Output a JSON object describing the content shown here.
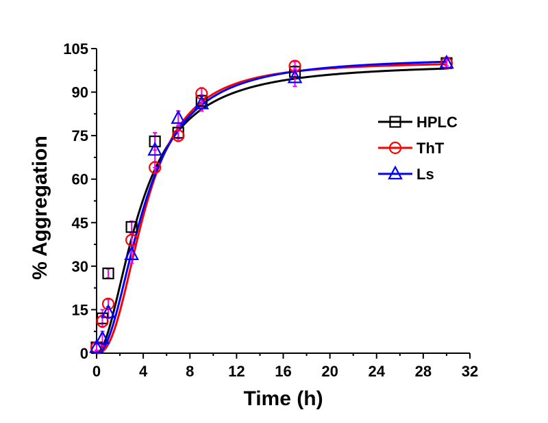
{
  "chart_data": {
    "type": "line",
    "title": "",
    "xlabel": "Time (h)",
    "ylabel": "% Aggregation",
    "xlim": [
      0,
      32
    ],
    "ylim": [
      0,
      105
    ],
    "xticks": [
      0,
      4,
      8,
      12,
      16,
      20,
      24,
      28,
      32
    ],
    "yticks": [
      0,
      15,
      30,
      45,
      60,
      75,
      90,
      105
    ],
    "xtick_labels": [
      "0",
      "4",
      "8",
      "12",
      "16",
      "20",
      "24",
      "28",
      "32"
    ],
    "ytick_labels": [
      "0",
      "15",
      "30",
      "45",
      "60",
      "75",
      "90",
      "105"
    ],
    "grid": false,
    "legend_position": "right",
    "error_bar_color": "#ff00ff",
    "series": [
      {
        "name": "HPLC",
        "color": "#000000",
        "marker": "square",
        "x": [
          0,
          0.5,
          1,
          3,
          5,
          7,
          9,
          17,
          30
        ],
        "y": [
          2,
          12,
          27.5,
          43.5,
          73,
          76,
          87,
          97,
          100
        ],
        "err": [
          1,
          3,
          1.5,
          2,
          3,
          2,
          2,
          2,
          1
        ],
        "curve": {
          "plateau": 100,
          "t50": 3.75,
          "n": 1.9
        }
      },
      {
        "name": "ThT",
        "color": "#ff0000",
        "marker": "circle",
        "x": [
          0,
          0.5,
          1,
          3,
          5,
          7,
          9,
          17,
          30
        ],
        "y": [
          2,
          11,
          17,
          39,
          64,
          75,
          89.5,
          99,
          100
        ],
        "err": [
          1,
          2,
          1.5,
          2,
          2,
          2,
          2,
          1.5,
          1
        ],
        "curve": {
          "plateau": 100.5,
          "t50": 4.2,
          "n": 2.4
        }
      },
      {
        "name": "Ls",
        "color": "#0000ff",
        "marker": "triangle",
        "x": [
          0,
          0.5,
          1,
          3,
          5,
          7,
          9,
          17,
          30
        ],
        "y": [
          2,
          5,
          14,
          34,
          70,
          81,
          86,
          95,
          100
        ],
        "err": [
          1,
          2.5,
          2,
          3,
          6,
          2.5,
          2.5,
          3,
          2
        ],
        "curve": {
          "plateau": 102,
          "t50": 4.1,
          "n": 2.1
        }
      }
    ]
  }
}
